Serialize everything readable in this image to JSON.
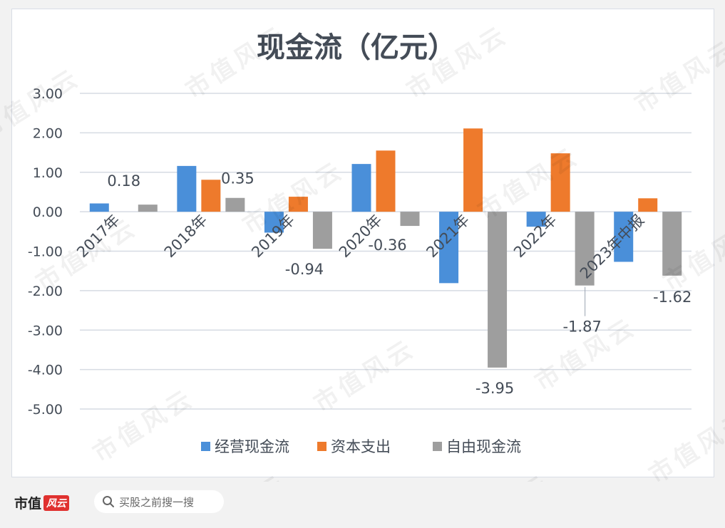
{
  "chart_data": {
    "type": "bar",
    "title": "现金流（亿元）",
    "categories": [
      "2017年",
      "2018年",
      "2019年",
      "2020年",
      "2021年",
      "2022年",
      "2023年中报"
    ],
    "series": [
      {
        "name": "经营现金流",
        "color": "#4a8fd9",
        "values": [
          0.21,
          1.16,
          -0.53,
          1.21,
          -1.81,
          -0.38,
          -1.27
        ]
      },
      {
        "name": "资本支出",
        "color": "#ee7a2c",
        "values": [
          0.0,
          0.81,
          0.38,
          1.55,
          2.11,
          1.48,
          0.34
        ]
      },
      {
        "name": "自由现金流",
        "color": "#9e9e9e",
        "values": [
          0.18,
          0.35,
          -0.94,
          -0.36,
          -3.95,
          -1.87,
          -1.62
        ]
      }
    ],
    "data_labels": {
      "series": "自由现金流",
      "labels": [
        "0.18",
        "0.35",
        "-0.94",
        "-0.36",
        "-3.95",
        "-1.87",
        "-1.62"
      ]
    },
    "yticks": [
      "3.00",
      "2.00",
      "1.00",
      "0.00",
      "-1.00",
      "-2.00",
      "-3.00",
      "-4.00",
      "-5.00"
    ],
    "ylim": [
      -5,
      3
    ],
    "grid": true,
    "legend_position": "bottom"
  },
  "footer": {
    "brand": "市值",
    "brand_logo": "风云",
    "search_placeholder": "买股之前搜一搜",
    "search_icon": "search-icon"
  },
  "watermark": "市值风云"
}
